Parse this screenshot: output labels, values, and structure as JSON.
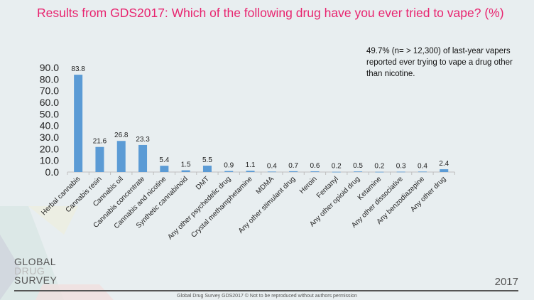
{
  "title": "Results from GDS2017: Which of the following drug have you ever tried to vape? (%)",
  "note": "49.7% (n= > 12,300) of last-year vapers reported ever trying to vape a drug other than nicotine.",
  "logo": {
    "line1": "GLOBAL",
    "line2": "DRUG",
    "line3": "SURVEY"
  },
  "year": "2017",
  "footer": "Global Drug Survey GDS2017 © Not to be reproduced without authors permission",
  "colors": {
    "bar": "#5b9bd5",
    "title": "#e8246f",
    "background": "#e8eef0"
  },
  "chart_data": {
    "type": "bar",
    "ylim": [
      0,
      90
    ],
    "ytick_step": 10,
    "yticks": [
      "0.0",
      "10.0",
      "20.0",
      "30.0",
      "40.0",
      "50.0",
      "60.0",
      "70.0",
      "80.0",
      "90.0"
    ],
    "grid": false,
    "categories": [
      "Herbal cannabis",
      "Cannabis resin",
      "Cannabis oil",
      "Cannabis concentrate",
      "Cannabis and nicotine",
      "Synthetic cannabinoid",
      "DMT",
      "Any other psychedelic drug",
      "Crystal methamphetamine",
      "MDMA",
      "Any other stimulant drug",
      "Heroin",
      "Fentanyl",
      "Any other opioid drug",
      "Ketamine",
      "Any other dissociative",
      "Any benzodiazepine",
      "Any other drug"
    ],
    "values": [
      83.8,
      21.6,
      26.8,
      23.3,
      5.4,
      1.5,
      5.5,
      0.9,
      1.1,
      0.4,
      0.7,
      0.6,
      0.2,
      0.5,
      0.2,
      0.3,
      0.4,
      2.4
    ],
    "value_labels": [
      "83.8",
      "21.6",
      "26.8",
      "23.3",
      "5.4",
      "1.5",
      "5.5",
      "0.9",
      "1.1",
      "0.4",
      "0.7",
      "0.6",
      "0.2",
      "0.5",
      "0.2",
      "0.3",
      "0.4",
      "2.4"
    ]
  }
}
